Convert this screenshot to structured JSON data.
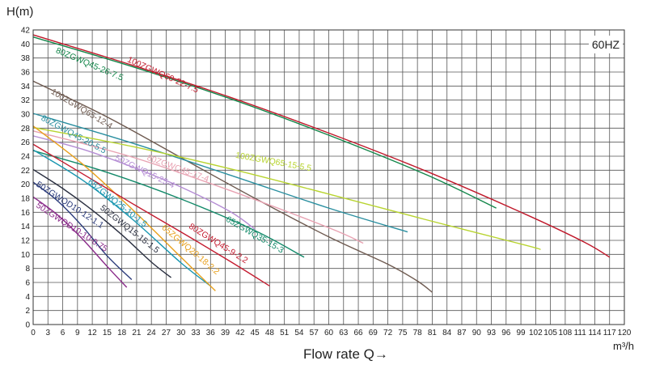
{
  "chart_data": {
    "type": "line",
    "title": "",
    "xlabel": "Flow rate Q→",
    "xunit": "m³/h",
    "ylabel": "H(m)",
    "frequency_label": "60HZ",
    "xlim": [
      0,
      120
    ],
    "ylim": [
      0,
      42
    ],
    "xticks": [
      0,
      3,
      6,
      9,
      12,
      15,
      18,
      21,
      24,
      27,
      30,
      33,
      36,
      39,
      42,
      45,
      48,
      51,
      54,
      57,
      60,
      63,
      66,
      69,
      72,
      75,
      78,
      81,
      84,
      87,
      90,
      93,
      96,
      99,
      102,
      105,
      108,
      111,
      114,
      117,
      120
    ],
    "yticks": [
      0,
      2,
      4,
      6,
      8,
      10,
      12,
      14,
      16,
      18,
      20,
      22,
      24,
      26,
      28,
      30,
      32,
      34,
      36,
      38,
      40,
      42
    ],
    "grid": true,
    "series": [
      {
        "name": "100ZGWQ60-22-7.5",
        "color": "#c0182a",
        "x": [
          0,
          20,
          40,
          60,
          80,
          100,
          112,
          117
        ],
        "y": [
          41.3,
          37.0,
          32.4,
          27.3,
          21.8,
          15.7,
          11.7,
          9.6
        ],
        "label_x": 19,
        "label_y": 37.5,
        "label_angle": 24
      },
      {
        "name": "80ZGWQ45-26-7.5",
        "color": "#13864a",
        "x": [
          0,
          20,
          40,
          60,
          80,
          94
        ],
        "y": [
          41.0,
          36.8,
          32.2,
          27.0,
          21.3,
          16.6
        ],
        "label_x": 4.5,
        "label_y": 38.8,
        "label_angle": 23
      },
      {
        "name": "100ZGWQ65-12-4",
        "color": "#6e5a50",
        "x": [
          0,
          15,
          30,
          45,
          60,
          72,
          78,
          81
        ],
        "y": [
          34.7,
          29.6,
          23.8,
          18.0,
          12.5,
          8.6,
          6.2,
          4.6
        ],
        "label_x": 3.5,
        "label_y": 33.0,
        "label_angle": 31
      },
      {
        "name": "80ZGWQ45-20-5.5",
        "color": "#2a8fa0",
        "x": [
          0,
          20,
          40,
          60,
          76
        ],
        "y": [
          30.1,
          25.9,
          21.3,
          16.6,
          13.2
        ],
        "label_x": 1.5,
        "label_y": 29.2,
        "label_angle": 28
      },
      {
        "name": "100ZGWQ65-15-5.5",
        "color": "#b8d430",
        "x": [
          0,
          20,
          40,
          60,
          80,
          100,
          103
        ],
        "y": [
          28.1,
          25.4,
          22.2,
          18.6,
          14.9,
          11.3,
          10.7
        ],
        "label_x": 41,
        "label_y": 23.8,
        "label_angle": 10
      },
      {
        "name": "80ZGWQ45-17-4",
        "color": "#e8a2b2",
        "x": [
          0,
          20,
          40,
          60,
          67
        ],
        "y": [
          27.6,
          23.9,
          19.1,
          13.8,
          11.6
        ],
        "label_x": 23,
        "label_y": 23.5,
        "label_angle": 20
      },
      {
        "name": "50ZGWQ15-25-4",
        "color": "#b48cd4",
        "x": [
          0,
          10,
          20,
          30,
          40,
          45
        ],
        "y": [
          26.9,
          25.0,
          22.5,
          19.6,
          16.1,
          13.6
        ],
        "label_x": 16.5,
        "label_y": 23.5,
        "label_angle": 26
      },
      {
        "name": "65ZGWQ35-15-3",
        "color": "#138a6a",
        "x": [
          0,
          15,
          30,
          45,
          55
        ],
        "y": [
          24.8,
          21.7,
          17.9,
          13.4,
          9.6
        ],
        "label_x": 39,
        "label_y": 14.8,
        "label_angle": 30
      },
      {
        "name": "65ZGWQ25-10-1.5",
        "color": "#1896b0",
        "x": [
          0,
          10,
          20,
          30,
          36
        ],
        "y": [
          24.9,
          20.6,
          15.1,
          8.8,
          5.5
        ],
        "label_x": 11,
        "label_y": 20.2,
        "label_angle": 38
      },
      {
        "name": "65ZGWQ20-18-2.2",
        "color": "#e8a01c",
        "x": [
          0,
          10,
          20,
          30,
          37
        ],
        "y": [
          28.3,
          22.9,
          16.5,
          9.6,
          4.8
        ],
        "label_x": 26,
        "label_y": 13.7,
        "label_angle": 40
      },
      {
        "name": "80ZGWQ45-9-2.2",
        "color": "#c41c30",
        "x": [
          0,
          10,
          20,
          30,
          40,
          48
        ],
        "y": [
          25.7,
          21.5,
          17.3,
          13.2,
          9.0,
          5.5
        ],
        "label_x": 31.5,
        "label_y": 13.8,
        "label_angle": 32
      },
      {
        "name": "50ZGWQ15-15-1.5",
        "color": "#2a2f40",
        "x": [
          0,
          6,
          12,
          18,
          24,
          28
        ],
        "y": [
          22.1,
          19.4,
          16.3,
          12.8,
          8.9,
          6.7
        ],
        "label_x": 13.5,
        "label_y": 16.5,
        "label_angle": 38
      },
      {
        "name": "50ZGWQD10-12-1.1",
        "color": "#2a3a7a",
        "x": [
          0,
          5,
          10,
          15,
          20
        ],
        "y": [
          20.3,
          17.6,
          14.0,
          9.8,
          6.4
        ],
        "label_x": 0.5,
        "label_y": 19.8,
        "label_angle": 33
      },
      {
        "name": "50ZGWQD10-10-0.75",
        "color": "#8a2a8a",
        "x": [
          0,
          5,
          10,
          15,
          19
        ],
        "y": [
          18.2,
          15.6,
          12.2,
          8.3,
          5.3
        ],
        "label_x": 0.5,
        "label_y": 16.8,
        "label_angle": 33
      }
    ]
  }
}
